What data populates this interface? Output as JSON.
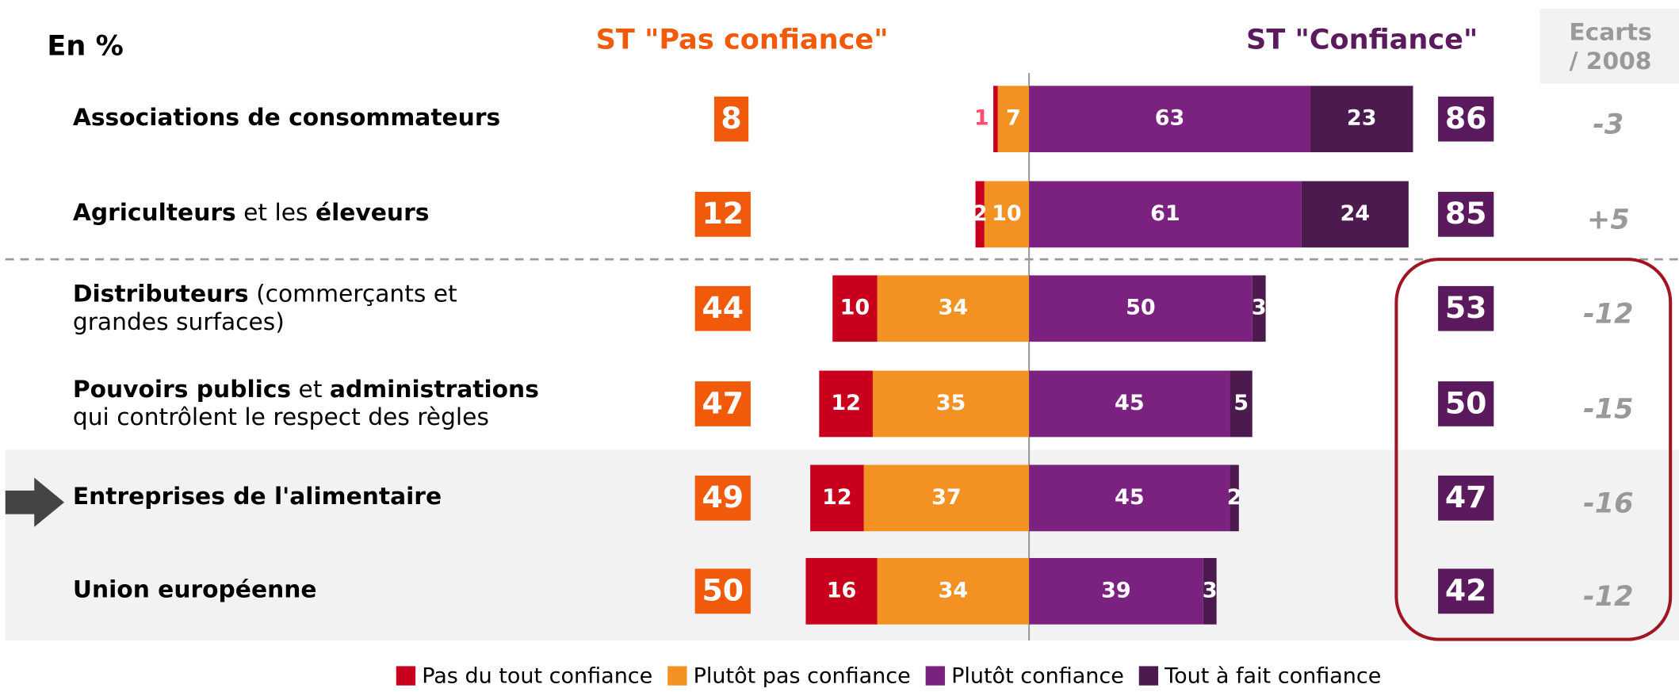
{
  "chart_data": {
    "type": "diverging_bar",
    "unit_label": "En %",
    "negative_header": "ST \"Pas confiance\"",
    "positive_header": "ST \"Confiance\"",
    "categories": [
      [
        [
          {
            "text": "Associations de consommateurs",
            "bold": true
          }
        ]
      ],
      [
        [
          {
            "text": "Agriculteurs",
            "bold": true
          },
          {
            "text": " et les ",
            "bold": false
          },
          {
            "text": "éleveurs",
            "bold": true
          }
        ]
      ],
      [
        [
          {
            "text": "Distributeurs",
            "bold": true
          },
          {
            "text": " (commerçants et",
            "bold": false
          }
        ],
        [
          {
            "text": "grandes surfaces)",
            "bold": false
          }
        ]
      ],
      [
        [
          {
            "text": "Pouvoirs publics",
            "bold": true
          },
          {
            "text": " et ",
            "bold": false
          },
          {
            "text": "administrations",
            "bold": true
          }
        ],
        [
          {
            "text": "qui contrôlent le respect des règles",
            "bold": false
          }
        ]
      ],
      [
        [
          {
            "text": "Entreprises de l'alimentaire",
            "bold": true
          }
        ]
      ],
      [
        [
          {
            "text": "Union européenne",
            "bold": true
          }
        ]
      ]
    ],
    "series": [
      {
        "name": "Pas du tout confiance",
        "color": "#c8001e",
        "side": "negative",
        "values": [
          1,
          2,
          10,
          12,
          12,
          16
        ]
      },
      {
        "name": "Plutôt pas confiance",
        "color": "#f39222",
        "side": "negative",
        "values": [
          7,
          10,
          34,
          35,
          37,
          34
        ]
      },
      {
        "name": "Plutôt confiance",
        "color": "#7b2180",
        "side": "positive",
        "values": [
          63,
          61,
          50,
          45,
          45,
          39
        ]
      },
      {
        "name": "Tout à fait confiance",
        "color": "#4d1a4f",
        "side": "positive",
        "values": [
          23,
          24,
          3,
          5,
          2,
          3
        ]
      }
    ],
    "negative_totals": {
      "color": "#f05a0a",
      "values": [
        8,
        12,
        44,
        47,
        49,
        50
      ]
    },
    "positive_totals": {
      "color": "#5c1a5e",
      "values": [
        86,
        85,
        53,
        50,
        47,
        42
      ]
    },
    "ecarts": {
      "title": [
        "Ecarts",
        "/ 2008"
      ],
      "values": [
        -3,
        5,
        -12,
        -15,
        -16,
        -12
      ],
      "value_labels": [
        "-3",
        "+5",
        "-12",
        "-15",
        "-16",
        "-12"
      ]
    }
  }
}
